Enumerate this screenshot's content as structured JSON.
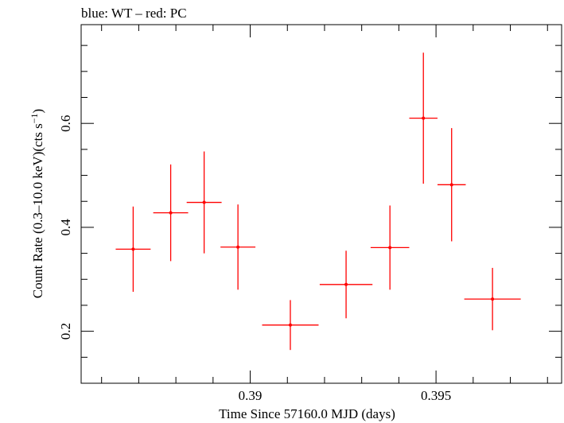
{
  "chart_data": {
    "type": "scatter",
    "title": "blue: WT – red: PC",
    "xlabel": "Time Since 57160.0 MJD (days)",
    "ylabel_main": "Count Rate (0.3–10.0 keV)(cts s",
    "ylabel_sup": "−1",
    "ylabel_end": ")",
    "xlim": [
      0.38545,
      0.39838
    ],
    "ylim": [
      0.1,
      0.79
    ],
    "x_ticks": [
      0.39,
      0.395
    ],
    "x_tick_labels": [
      "0.39",
      "0.395"
    ],
    "y_ticks": [
      0.2,
      0.4,
      0.6
    ],
    "y_tick_labels": [
      "0.2",
      "0.4",
      "0.6"
    ],
    "grid": false,
    "series": [
      {
        "color": "#ff0000",
        "points": [
          {
            "x": 0.38685,
            "xerr_lo": 0.00047,
            "xerr_hi": 0.00047,
            "y": 0.358,
            "yerr_lo": 0.082,
            "yerr_hi": 0.082
          },
          {
            "x": 0.38786,
            "xerr_lo": 0.00047,
            "xerr_hi": 0.00047,
            "y": 0.428,
            "yerr_lo": 0.093,
            "yerr_hi": 0.093
          },
          {
            "x": 0.38876,
            "xerr_lo": 0.00047,
            "xerr_hi": 0.00047,
            "y": 0.448,
            "yerr_lo": 0.098,
            "yerr_hi": 0.098
          },
          {
            "x": 0.38967,
            "xerr_lo": 0.00047,
            "xerr_hi": 0.00047,
            "y": 0.362,
            "yerr_lo": 0.082,
            "yerr_hi": 0.082
          },
          {
            "x": 0.39108,
            "xerr_lo": 0.00076,
            "xerr_hi": 0.00076,
            "y": 0.212,
            "yerr_lo": 0.048,
            "yerr_hi": 0.048
          },
          {
            "x": 0.39258,
            "xerr_lo": 0.00071,
            "xerr_hi": 0.00071,
            "y": 0.29,
            "yerr_lo": 0.065,
            "yerr_hi": 0.065
          },
          {
            "x": 0.39376,
            "xerr_lo": 0.00052,
            "xerr_hi": 0.00052,
            "y": 0.361,
            "yerr_lo": 0.081,
            "yerr_hi": 0.081
          },
          {
            "x": 0.39466,
            "xerr_lo": 0.00038,
            "xerr_hi": 0.00038,
            "y": 0.61,
            "yerr_lo": 0.126,
            "yerr_hi": 0.126
          },
          {
            "x": 0.39542,
            "xerr_lo": 0.00038,
            "xerr_hi": 0.00038,
            "y": 0.482,
            "yerr_lo": 0.109,
            "yerr_hi": 0.109
          },
          {
            "x": 0.39652,
            "xerr_lo": 0.00076,
            "xerr_hi": 0.00076,
            "y": 0.262,
            "yerr_lo": 0.06,
            "yerr_hi": 0.06
          }
        ]
      }
    ]
  }
}
